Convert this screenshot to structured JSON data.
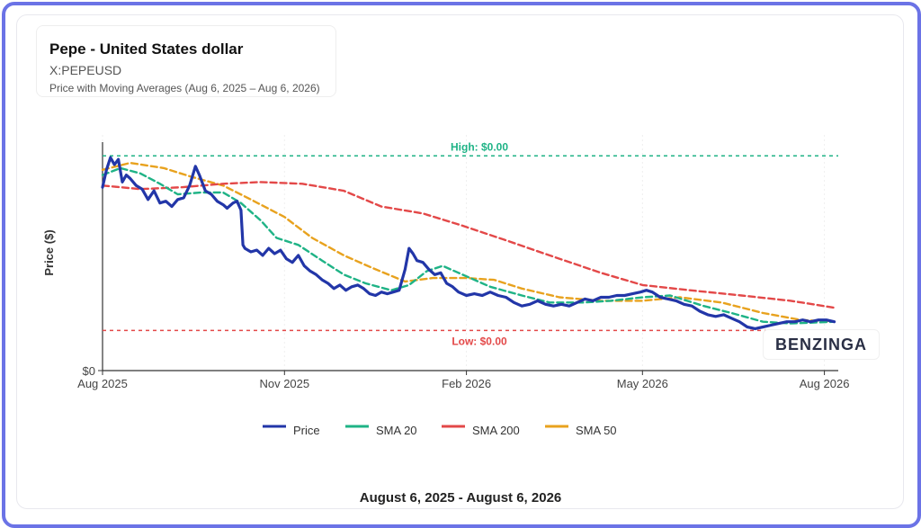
{
  "header": {
    "title": "Pepe - United States dollar",
    "symbol": "X:PEPEUSD",
    "subtitle": "Price with Moving Averages (Aug 6, 2025 – Aug 6, 2026)"
  },
  "footer": {
    "date_range": "August 6, 2025 - August 6, 2026"
  },
  "brand": {
    "name": "BENZINGA"
  },
  "chart_data": {
    "type": "line",
    "ylabel": "Price ($)",
    "y_tick_labels": [
      "$0"
    ],
    "x_tick_labels": [
      "Aug 2025",
      "Nov 2025",
      "Feb 2026",
      "May 2026",
      "Aug 2026"
    ],
    "x_tick_dates": [
      "2025-08-01",
      "2025-11-01",
      "2026-02-01",
      "2026-05-01",
      "2026-08-01"
    ],
    "x_range": [
      "2025-08-01",
      "2026-08-08"
    ],
    "y_range": [
      0,
      1.35e-05
    ],
    "grid": true,
    "legend_position": "bottom",
    "annotations": [
      {
        "label": "High: $0.00",
        "value": 1.23e-05,
        "color": "#1fb386"
      },
      {
        "label": "Low: $0.00",
        "value": 2.3e-06,
        "color": "#e34848"
      }
    ],
    "series": [
      {
        "name": "Price",
        "color": "#2236a8",
        "points": [
          [
            "2025-08-01",
            1.05e-05
          ],
          [
            "2025-08-03",
            1.15e-05
          ],
          [
            "2025-08-05",
            1.22e-05
          ],
          [
            "2025-08-07",
            1.18e-05
          ],
          [
            "2025-08-09",
            1.21e-05
          ],
          [
            "2025-08-11",
            1.08e-05
          ],
          [
            "2025-08-13",
            1.12e-05
          ],
          [
            "2025-08-15",
            1.1e-05
          ],
          [
            "2025-08-18",
            1.06e-05
          ],
          [
            "2025-08-21",
            1.04e-05
          ],
          [
            "2025-08-24",
            9.8e-06
          ],
          [
            "2025-08-27",
            1.03e-05
          ],
          [
            "2025-08-30",
            9.6e-06
          ],
          [
            "2025-09-02",
            9.7e-06
          ],
          [
            "2025-09-05",
            9.4e-06
          ],
          [
            "2025-09-08",
            9.8e-06
          ],
          [
            "2025-09-11",
            9.9e-06
          ],
          [
            "2025-09-14",
            1.06e-05
          ],
          [
            "2025-09-17",
            1.17e-05
          ],
          [
            "2025-09-19",
            1.12e-05
          ],
          [
            "2025-09-22",
            1.03e-05
          ],
          [
            "2025-09-25",
            1.01e-05
          ],
          [
            "2025-09-28",
            9.7e-06
          ],
          [
            "2025-10-01",
            9.5e-06
          ],
          [
            "2025-10-03",
            9.3e-06
          ],
          [
            "2025-10-06",
            9.6e-06
          ],
          [
            "2025-10-08",
            9.7e-06
          ],
          [
            "2025-10-10",
            9.2e-06
          ],
          [
            "2025-10-11",
            7.2e-06
          ],
          [
            "2025-10-12",
            7e-06
          ],
          [
            "2025-10-15",
            6.8e-06
          ],
          [
            "2025-10-18",
            6.9e-06
          ],
          [
            "2025-10-21",
            6.6e-06
          ],
          [
            "2025-10-24",
            7e-06
          ],
          [
            "2025-10-27",
            6.7e-06
          ],
          [
            "2025-10-30",
            6.9e-06
          ],
          [
            "2025-11-02",
            6.4e-06
          ],
          [
            "2025-11-05",
            6.2e-06
          ],
          [
            "2025-11-08",
            6.6e-06
          ],
          [
            "2025-11-11",
            6e-06
          ],
          [
            "2025-11-14",
            5.7e-06
          ],
          [
            "2025-11-17",
            5.5e-06
          ],
          [
            "2025-11-20",
            5.2e-06
          ],
          [
            "2025-11-23",
            5e-06
          ],
          [
            "2025-11-26",
            4.7e-06
          ],
          [
            "2025-11-29",
            4.9e-06
          ],
          [
            "2025-12-02",
            4.6e-06
          ],
          [
            "2025-12-05",
            4.8e-06
          ],
          [
            "2025-12-08",
            4.9e-06
          ],
          [
            "2025-12-11",
            4.7e-06
          ],
          [
            "2025-12-14",
            4.4e-06
          ],
          [
            "2025-12-17",
            4.3e-06
          ],
          [
            "2025-12-20",
            4.5e-06
          ],
          [
            "2025-12-23",
            4.4e-06
          ],
          [
            "2025-12-26",
            4.5e-06
          ],
          [
            "2025-12-29",
            4.6e-06
          ],
          [
            "2026-01-01",
            5.8e-06
          ],
          [
            "2026-01-03",
            7e-06
          ],
          [
            "2026-01-05",
            6.7e-06
          ],
          [
            "2026-01-07",
            6.3e-06
          ],
          [
            "2026-01-10",
            6.2e-06
          ],
          [
            "2026-01-13",
            5.8e-06
          ],
          [
            "2026-01-16",
            5.5e-06
          ],
          [
            "2026-01-19",
            5.6e-06
          ],
          [
            "2026-01-22",
            5e-06
          ],
          [
            "2026-01-25",
            4.8e-06
          ],
          [
            "2026-01-28",
            4.5e-06
          ],
          [
            "2026-02-01",
            4.3e-06
          ],
          [
            "2026-02-05",
            4.4e-06
          ],
          [
            "2026-02-09",
            4.3e-06
          ],
          [
            "2026-02-13",
            4.5e-06
          ],
          [
            "2026-02-17",
            4.3e-06
          ],
          [
            "2026-02-21",
            4.2e-06
          ],
          [
            "2026-02-25",
            3.9e-06
          ],
          [
            "2026-03-01",
            3.7e-06
          ],
          [
            "2026-03-05",
            3.8e-06
          ],
          [
            "2026-03-09",
            4e-06
          ],
          [
            "2026-03-13",
            3.8e-06
          ],
          [
            "2026-03-17",
            3.7e-06
          ],
          [
            "2026-03-21",
            3.8e-06
          ],
          [
            "2026-03-25",
            3.7e-06
          ],
          [
            "2026-03-29",
            3.9e-06
          ],
          [
            "2026-04-02",
            4.1e-06
          ],
          [
            "2026-04-06",
            4e-06
          ],
          [
            "2026-04-10",
            4.2e-06
          ],
          [
            "2026-04-14",
            4.2e-06
          ],
          [
            "2026-04-18",
            4.3e-06
          ],
          [
            "2026-04-22",
            4.3e-06
          ],
          [
            "2026-04-26",
            4.4e-06
          ],
          [
            "2026-04-30",
            4.5e-06
          ],
          [
            "2026-05-03",
            4.6e-06
          ],
          [
            "2026-05-06",
            4.5e-06
          ],
          [
            "2026-05-10",
            4.2e-06
          ],
          [
            "2026-05-14",
            4.1e-06
          ],
          [
            "2026-05-18",
            4e-06
          ],
          [
            "2026-05-22",
            3.8e-06
          ],
          [
            "2026-05-26",
            3.7e-06
          ],
          [
            "2026-05-30",
            3.4e-06
          ],
          [
            "2026-06-03",
            3.2e-06
          ],
          [
            "2026-06-07",
            3.1e-06
          ],
          [
            "2026-06-11",
            3.2e-06
          ],
          [
            "2026-06-15",
            3e-06
          ],
          [
            "2026-06-19",
            2.8e-06
          ],
          [
            "2026-06-23",
            2.5e-06
          ],
          [
            "2026-06-27",
            2.4e-06
          ],
          [
            "2026-07-01",
            2.5e-06
          ],
          [
            "2026-07-05",
            2.6e-06
          ],
          [
            "2026-07-09",
            2.7e-06
          ],
          [
            "2026-07-13",
            2.8e-06
          ],
          [
            "2026-07-17",
            2.8e-06
          ],
          [
            "2026-07-21",
            2.9e-06
          ],
          [
            "2026-07-25",
            2.8e-06
          ],
          [
            "2026-07-29",
            2.9e-06
          ],
          [
            "2026-08-02",
            2.9e-06
          ],
          [
            "2026-08-06",
            2.8e-06
          ]
        ]
      },
      {
        "name": "SMA 20",
        "color": "#1fb386",
        "points": [
          [
            "2025-08-01",
            1.12e-05
          ],
          [
            "2025-08-10",
            1.16e-05
          ],
          [
            "2025-08-20",
            1.13e-05
          ],
          [
            "2025-08-30",
            1.07e-05
          ],
          [
            "2025-09-08",
            1.01e-05
          ],
          [
            "2025-09-20",
            1.02e-05
          ],
          [
            "2025-10-01",
            1.02e-05
          ],
          [
            "2025-10-10",
            9.6e-06
          ],
          [
            "2025-10-20",
            8.6e-06
          ],
          [
            "2025-10-28",
            7.6e-06
          ],
          [
            "2025-11-08",
            7.2e-06
          ],
          [
            "2025-11-20",
            6.3e-06
          ],
          [
            "2025-12-01",
            5.5e-06
          ],
          [
            "2025-12-12",
            5e-06
          ],
          [
            "2025-12-25",
            4.6e-06
          ],
          [
            "2026-01-03",
            4.9e-06
          ],
          [
            "2026-01-12",
            5.7e-06
          ],
          [
            "2026-01-20",
            6e-06
          ],
          [
            "2026-02-01",
            5.4e-06
          ],
          [
            "2026-02-13",
            4.8e-06
          ],
          [
            "2026-03-01",
            4.3e-06
          ],
          [
            "2026-03-15",
            3.9e-06
          ],
          [
            "2026-04-01",
            3.9e-06
          ],
          [
            "2026-04-15",
            4e-06
          ],
          [
            "2026-05-01",
            4.2e-06
          ],
          [
            "2026-05-15",
            4.3e-06
          ],
          [
            "2026-06-01",
            3.7e-06
          ],
          [
            "2026-06-15",
            3.3e-06
          ],
          [
            "2026-07-01",
            2.8e-06
          ],
          [
            "2026-07-15",
            2.7e-06
          ],
          [
            "2026-08-06",
            2.8e-06
          ]
        ]
      },
      {
        "name": "SMA 200",
        "color": "#e34848",
        "points": [
          [
            "2025-08-01",
            1.06e-05
          ],
          [
            "2025-08-20",
            1.04e-05
          ],
          [
            "2025-09-10",
            1.05e-05
          ],
          [
            "2025-10-01",
            1.07e-05
          ],
          [
            "2025-10-20",
            1.08e-05
          ],
          [
            "2025-11-10",
            1.07e-05
          ],
          [
            "2025-12-01",
            1.03e-05
          ],
          [
            "2025-12-20",
            9.4e-06
          ],
          [
            "2026-01-10",
            9e-06
          ],
          [
            "2026-01-30",
            8.3e-06
          ],
          [
            "2026-02-20",
            7.5e-06
          ],
          [
            "2026-03-15",
            6.6e-06
          ],
          [
            "2026-04-10",
            5.6e-06
          ],
          [
            "2026-05-01",
            4.9e-06
          ],
          [
            "2026-05-25",
            4.6e-06
          ],
          [
            "2026-06-20",
            4.3e-06
          ],
          [
            "2026-07-15",
            4e-06
          ],
          [
            "2026-08-06",
            3.6e-06
          ]
        ]
      },
      {
        "name": "SMA 50",
        "color": "#e8a21e",
        "points": [
          [
            "2025-08-01",
            1.15e-05
          ],
          [
            "2025-08-15",
            1.19e-05
          ],
          [
            "2025-09-01",
            1.16e-05
          ],
          [
            "2025-09-15",
            1.11e-05
          ],
          [
            "2025-10-01",
            1.06e-05
          ],
          [
            "2025-10-15",
            9.8e-06
          ],
          [
            "2025-11-01",
            8.8e-06
          ],
          [
            "2025-11-15",
            7.6e-06
          ],
          [
            "2025-12-01",
            6.6e-06
          ],
          [
            "2025-12-15",
            5.9e-06
          ],
          [
            "2026-01-01",
            5.1e-06
          ],
          [
            "2026-01-15",
            5.3e-06
          ],
          [
            "2026-02-01",
            5.3e-06
          ],
          [
            "2026-02-15",
            5.2e-06
          ],
          [
            "2026-03-01",
            4.7e-06
          ],
          [
            "2026-03-20",
            4.2e-06
          ],
          [
            "2026-04-10",
            4e-06
          ],
          [
            "2026-05-01",
            4e-06
          ],
          [
            "2026-05-20",
            4.2e-06
          ],
          [
            "2026-06-10",
            3.9e-06
          ],
          [
            "2026-07-01",
            3.3e-06
          ],
          [
            "2026-07-20",
            2.9e-06
          ],
          [
            "2026-08-06",
            2.8e-06
          ]
        ]
      }
    ]
  }
}
